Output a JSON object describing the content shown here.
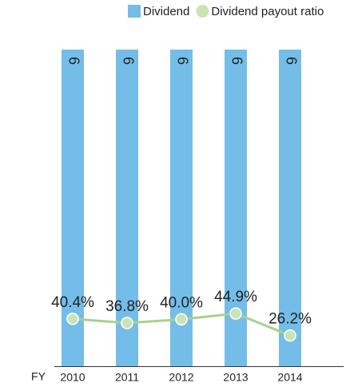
{
  "chart_data": {
    "type": "bar",
    "categories": [
      "2010",
      "2011",
      "2012",
      "2013",
      "2014"
    ],
    "x_label": "FY",
    "series": [
      {
        "name": "Dividend",
        "type": "bar",
        "color": "#74bde8",
        "values": [
          6,
          6,
          6,
          6,
          6
        ]
      },
      {
        "name": "Dividend payout ratio",
        "type": "line",
        "axis": "y2",
        "color": "#a9d18e",
        "values": [
          40.4,
          36.8,
          40.0,
          44.9,
          26.2
        ],
        "value_labels": [
          "40.4%",
          "36.8%",
          "40.0%",
          "44.9%",
          "26.2%"
        ]
      }
    ],
    "ylim": [
      0,
      6
    ],
    "y2lim": [
      0,
      270
    ],
    "legend": "top-right"
  }
}
